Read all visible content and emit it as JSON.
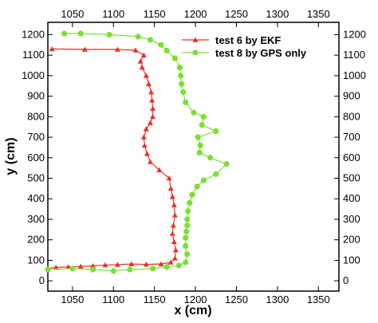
{
  "chart_data": {
    "type": "line",
    "xlabel": "x (cm)",
    "ylabel": "y (cm)",
    "xlim": [
      1020,
      1375
    ],
    "ylim": [
      -50,
      1260
    ],
    "xticks": [
      1050,
      1100,
      1150,
      1200,
      1250,
      1300,
      1350
    ],
    "yticks": [
      0,
      100,
      200,
      300,
      400,
      500,
      600,
      700,
      800,
      900,
      1000,
      1100,
      1200
    ],
    "grid": false,
    "legend_position": "top-right",
    "series": [
      {
        "name": "test 6 by EKF",
        "color": "#e8312a",
        "marker": "triangle",
        "points": [
          [
            1020,
            60
          ],
          [
            1030,
            65
          ],
          [
            1045,
            68
          ],
          [
            1060,
            70
          ],
          [
            1075,
            73
          ],
          [
            1090,
            77
          ],
          [
            1105,
            79
          ],
          [
            1122,
            82
          ],
          [
            1140,
            80
          ],
          [
            1158,
            82
          ],
          [
            1170,
            90
          ],
          [
            1175,
            110
          ],
          [
            1176,
            150
          ],
          [
            1174,
            190
          ],
          [
            1172,
            230
          ],
          [
            1173,
            270
          ],
          [
            1175,
            320
          ],
          [
            1174,
            370
          ],
          [
            1172,
            410
          ],
          [
            1170,
            450
          ],
          [
            1168,
            500
          ],
          [
            1156,
            540
          ],
          [
            1145,
            580
          ],
          [
            1141,
            620
          ],
          [
            1138,
            660
          ],
          [
            1137,
            700
          ],
          [
            1140,
            740
          ],
          [
            1145,
            770
          ],
          [
            1148,
            800
          ],
          [
            1148,
            840
          ],
          [
            1147,
            880
          ],
          [
            1146,
            920
          ],
          [
            1143,
            960
          ],
          [
            1140,
            1000
          ],
          [
            1135,
            1040
          ],
          [
            1133,
            1070
          ],
          [
            1137,
            1100
          ],
          [
            1127,
            1124
          ],
          [
            1105,
            1128
          ],
          [
            1065,
            1128
          ],
          [
            1025,
            1130
          ]
        ]
      },
      {
        "name": "test 8 by GPS only",
        "color": "#7ae033",
        "marker": "circle",
        "points": [
          [
            1020,
            55
          ],
          [
            1050,
            60
          ],
          [
            1075,
            55
          ],
          [
            1100,
            48
          ],
          [
            1120,
            55
          ],
          [
            1148,
            60
          ],
          [
            1165,
            68
          ],
          [
            1180,
            75
          ],
          [
            1188,
            90
          ],
          [
            1190,
            130
          ],
          [
            1188,
            170
          ],
          [
            1188,
            210
          ],
          [
            1189,
            240
          ],
          [
            1190,
            270
          ],
          [
            1190,
            300
          ],
          [
            1191,
            340
          ],
          [
            1193,
            380
          ],
          [
            1196,
            420
          ],
          [
            1202,
            460
          ],
          [
            1210,
            490
          ],
          [
            1225,
            520
          ],
          [
            1238,
            570
          ],
          [
            1218,
            600
          ],
          [
            1205,
            625
          ],
          [
            1206,
            660
          ],
          [
            1203,
            700
          ],
          [
            1225,
            730
          ],
          [
            1208,
            760
          ],
          [
            1210,
            800
          ],
          [
            1198,
            820
          ],
          [
            1188,
            870
          ],
          [
            1185,
            920
          ],
          [
            1183,
            960
          ],
          [
            1182,
            1000
          ],
          [
            1181,
            1040
          ],
          [
            1175,
            1085
          ],
          [
            1165,
            1122
          ],
          [
            1158,
            1150
          ],
          [
            1145,
            1175
          ],
          [
            1130,
            1190
          ],
          [
            1095,
            1200
          ],
          [
            1060,
            1205
          ],
          [
            1040,
            1205
          ]
        ]
      }
    ]
  }
}
